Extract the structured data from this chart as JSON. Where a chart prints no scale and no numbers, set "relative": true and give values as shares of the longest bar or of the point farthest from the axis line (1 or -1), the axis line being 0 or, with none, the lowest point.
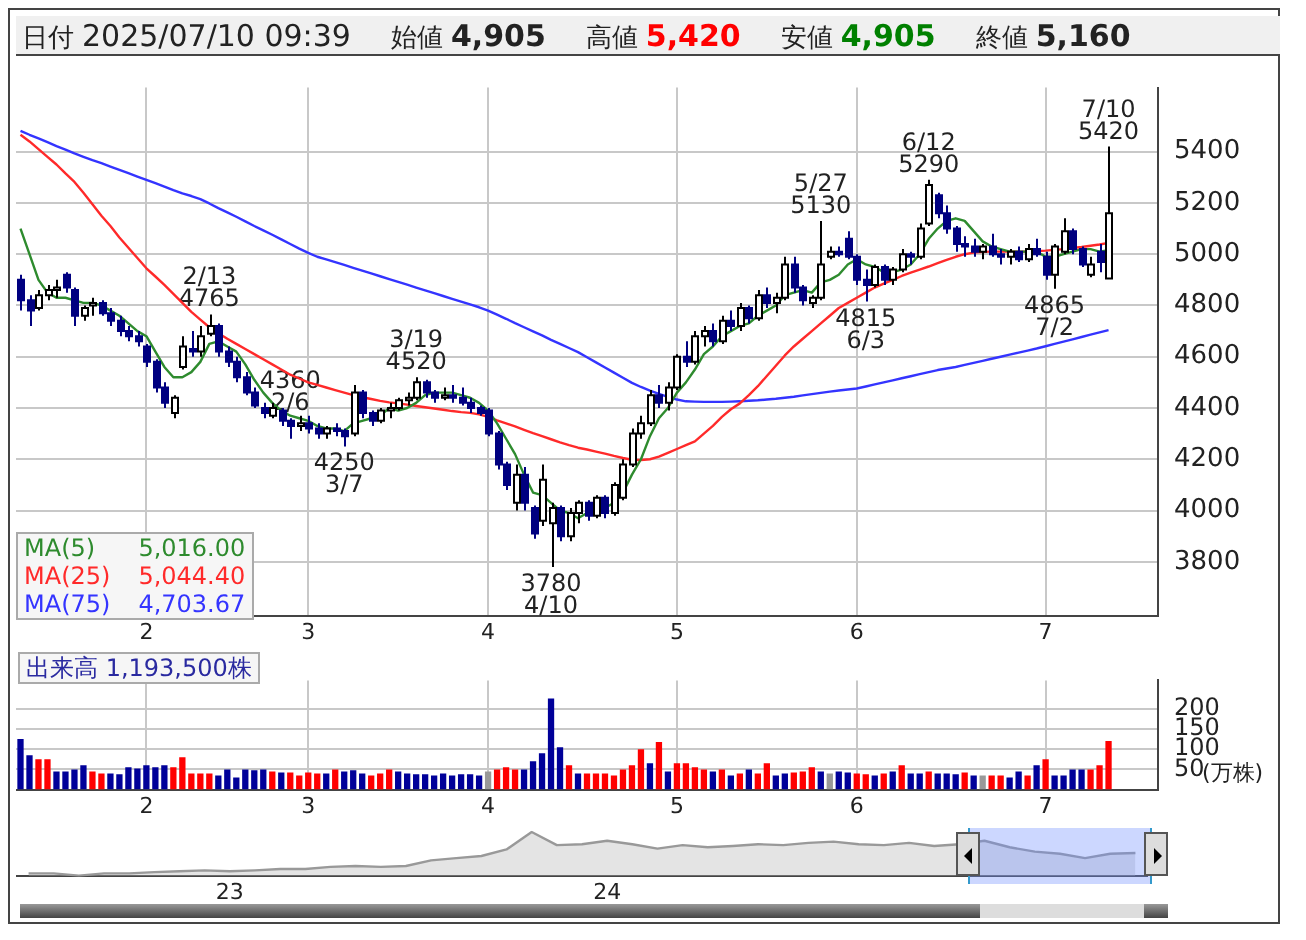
{
  "chart_data": [
    {
      "type": "candlestick",
      "grid": true,
      "legend": "bottom left",
      "marker": "none",
      "ylim": [
        3590,
        5650
      ],
      "yticks": [
        3800,
        4000,
        4200,
        4400,
        4600,
        4800,
        5000,
        5200,
        5400
      ],
      "annotations": [
        "日付 2025/07/10 09:39",
        "始値 4,905",
        "高値 5,420",
        "安値 4,905",
        "終値 5,160",
        "5,016.00",
        "5,044.40",
        "4,703.67",
        {
          "text": "4360\n2/6",
          "y": 4360
        },
        {
          "text": "2/13\n4765",
          "y": 4765
        },
        {
          "text": "4250\n3/7",
          "y": 4250
        },
        {
          "text": "3/19\n4520",
          "y": 4520
        },
        {
          "text": "3780\n4/10",
          "y": 3780
        },
        {
          "text": "5/27\n5130",
          "y": 5130
        },
        {
          "text": "4815\n6/3",
          "y": 4815
        },
        {
          "text": "6/12\n5290",
          "y": 5290
        },
        {
          "text": "4865\n7/2",
          "y": 4865
        },
        {
          "text": "7/10\n5420",
          "y": 5420
        }
      ],
      "categories": [
        null,
        null,
        null,
        null,
        null,
        null,
        null,
        null,
        null,
        null,
        null,
        null,
        null,
        null,
        "2",
        null,
        null,
        null,
        null,
        null,
        null,
        null,
        null,
        null,
        null,
        null,
        null,
        null,
        null,
        null,
        null,
        null,
        "3",
        null,
        null,
        null,
        null,
        null,
        null,
        null,
        null,
        null,
        null,
        null,
        null,
        null,
        null,
        null,
        null,
        null,
        null,
        null,
        "4",
        null,
        null,
        null,
        null,
        null,
        null,
        null,
        null,
        null,
        null,
        null,
        null,
        null,
        null,
        null,
        null,
        null,
        null,
        null,
        null,
        "5",
        null,
        null,
        null,
        null,
        null,
        null,
        null,
        null,
        null,
        null,
        null,
        null,
        null,
        null,
        null,
        null,
        null,
        null,
        null,
        "6",
        null,
        null,
        null,
        null,
        null,
        null,
        null,
        null,
        null,
        null,
        null,
        null,
        null,
        null,
        null,
        null,
        null,
        null,
        null,
        null,
        "7",
        null,
        null,
        null,
        null,
        null,
        null,
        null
      ],
      "ohlc": [
        [
          4900,
          4920,
          4780,
          4820
        ],
        [
          4820,
          4840,
          4720,
          4780
        ],
        [
          4790,
          4860,
          4780,
          4840
        ],
        [
          4840,
          4880,
          4820,
          4860
        ],
        [
          4860,
          4900,
          4830,
          4870
        ],
        [
          4920,
          4930,
          4850,
          4870
        ],
        [
          4860,
          4870,
          4720,
          4760
        ],
        [
          4760,
          4800,
          4740,
          4790
        ],
        [
          4800,
          4830,
          4760,
          4810
        ],
        [
          4810,
          4820,
          4760,
          4770
        ],
        [
          4770,
          4790,
          4720,
          4740
        ],
        [
          4740,
          4760,
          4680,
          4700
        ],
        [
          4700,
          4720,
          4660,
          4680
        ],
        [
          4680,
          4700,
          4640,
          4660
        ],
        [
          4640,
          4650,
          4560,
          4580
        ],
        [
          4580,
          4590,
          4460,
          4480
        ],
        [
          4480,
          4500,
          4400,
          4420
        ],
        [
          4380,
          4450,
          4360,
          4440
        ],
        [
          4560,
          4680,
          4550,
          4640
        ],
        [
          4630,
          4700,
          4600,
          4620
        ],
        [
          4620,
          4720,
          4600,
          4680
        ],
        [
          4690,
          4765,
          4680,
          4720
        ],
        [
          4720,
          4730,
          4600,
          4620
        ],
        [
          4620,
          4640,
          4560,
          4580
        ],
        [
          4580,
          4600,
          4500,
          4520
        ],
        [
          4520,
          4540,
          4450,
          4460
        ],
        [
          4460,
          4480,
          4400,
          4410
        ],
        [
          4400,
          4420,
          4360,
          4380
        ],
        [
          4370,
          4420,
          4360,
          4400
        ],
        [
          4390,
          4400,
          4330,
          4350
        ],
        [
          4350,
          4360,
          4280,
          4330
        ],
        [
          4330,
          4370,
          4310,
          4340
        ],
        [
          4340,
          4370,
          4300,
          4320
        ],
        [
          4320,
          4340,
          4280,
          4300
        ],
        [
          4300,
          4330,
          4280,
          4320
        ],
        [
          4320,
          4340,
          4290,
          4310
        ],
        [
          4310,
          4320,
          4250,
          4290
        ],
        [
          4300,
          4490,
          4290,
          4460
        ],
        [
          4460,
          4470,
          4360,
          4380
        ],
        [
          4380,
          4390,
          4330,
          4350
        ],
        [
          4350,
          4400,
          4340,
          4390
        ],
        [
          4390,
          4420,
          4360,
          4400
        ],
        [
          4400,
          4440,
          4390,
          4430
        ],
        [
          4430,
          4460,
          4410,
          4440
        ],
        [
          4440,
          4520,
          4430,
          4500
        ],
        [
          4500,
          4510,
          4440,
          4460
        ],
        [
          4460,
          4470,
          4420,
          4440
        ],
        [
          4440,
          4480,
          4430,
          4450
        ],
        [
          4450,
          4490,
          4420,
          4440
        ],
        [
          4440,
          4480,
          4410,
          4420
        ],
        [
          4420,
          4440,
          4380,
          4400
        ],
        [
          4400,
          4410,
          4370,
          4380
        ],
        [
          4390,
          4400,
          4290,
          4300
        ],
        [
          4300,
          4310,
          4160,
          4180
        ],
        [
          4180,
          4190,
          4080,
          4100
        ],
        [
          4030,
          4180,
          4000,
          4140
        ],
        [
          4140,
          4170,
          4000,
          4030
        ],
        [
          4010,
          4020,
          3890,
          3910
        ],
        [
          3960,
          4180,
          3940,
          4120
        ],
        [
          3950,
          4030,
          3780,
          4010
        ],
        [
          4010,
          4020,
          3880,
          3900
        ],
        [
          3900,
          4010,
          3880,
          3990
        ],
        [
          3990,
          4040,
          3950,
          4030
        ],
        [
          4030,
          4040,
          3960,
          3980
        ],
        [
          3980,
          4060,
          3970,
          4050
        ],
        [
          4050,
          4060,
          3970,
          3990
        ],
        [
          3990,
          4110,
          3980,
          4100
        ],
        [
          4050,
          4200,
          4040,
          4180
        ],
        [
          4180,
          4320,
          4170,
          4300
        ],
        [
          4300,
          4370,
          4280,
          4340
        ],
        [
          4340,
          4470,
          4330,
          4450
        ],
        [
          4450,
          4490,
          4400,
          4420
        ],
        [
          4420,
          4500,
          4390,
          4480
        ],
        [
          4480,
          4610,
          4470,
          4600
        ],
        [
          4600,
          4660,
          4560,
          4580
        ],
        [
          4580,
          4700,
          4570,
          4680
        ],
        [
          4680,
          4720,
          4640,
          4700
        ],
        [
          4700,
          4730,
          4640,
          4660
        ],
        [
          4660,
          4760,
          4650,
          4740
        ],
        [
          4740,
          4780,
          4700,
          4720
        ],
        [
          4720,
          4810,
          4700,
          4790
        ],
        [
          4790,
          4800,
          4730,
          4750
        ],
        [
          4750,
          4860,
          4740,
          4840
        ],
        [
          4840,
          4870,
          4790,
          4810
        ],
        [
          4810,
          4850,
          4770,
          4830
        ],
        [
          4830,
          4990,
          4820,
          4960
        ],
        [
          4960,
          4990,
          4850,
          4870
        ],
        [
          4870,
          4880,
          4800,
          4820
        ],
        [
          4810,
          4840,
          4790,
          4830
        ],
        [
          4830,
          5130,
          4820,
          4960
        ],
        [
          4990,
          5030,
          4980,
          5010
        ],
        [
          5010,
          5030,
          4990,
          5000
        ],
        [
          5060,
          5090,
          4980,
          4990
        ],
        [
          4990,
          5000,
          4880,
          4900
        ],
        [
          4900,
          4940,
          4815,
          4880
        ],
        [
          4880,
          4960,
          4870,
          4950
        ],
        [
          4950,
          4960,
          4880,
          4900
        ],
        [
          4900,
          4950,
          4880,
          4940
        ],
        [
          4940,
          5020,
          4930,
          5000
        ],
        [
          5000,
          5010,
          4960,
          4990
        ],
        [
          4990,
          5120,
          4980,
          5100
        ],
        [
          5120,
          5290,
          5110,
          5270
        ],
        [
          5230,
          5240,
          5140,
          5160
        ],
        [
          5160,
          5190,
          5080,
          5100
        ],
        [
          5100,
          5110,
          5010,
          5040
        ],
        [
          5040,
          5070,
          4990,
          5030
        ],
        [
          5030,
          5060,
          4990,
          5010
        ],
        [
          5010,
          5040,
          4980,
          5030
        ],
        [
          5030,
          5080,
          4990,
          5000
        ],
        [
          5000,
          5020,
          4960,
          4990
        ],
        [
          4990,
          5020,
          4960,
          5010
        ],
        [
          5010,
          5030,
          4970,
          4980
        ],
        [
          4980,
          5040,
          4970,
          5020
        ],
        [
          5020,
          5060,
          4990,
          5000
        ],
        [
          4990,
          5010,
          4900,
          4920
        ],
        [
          4920,
          5040,
          4865,
          5030
        ],
        [
          5010,
          5140,
          5000,
          5090
        ],
        [
          5090,
          5100,
          5000,
          5020
        ],
        [
          5020,
          5030,
          4950,
          4960
        ],
        [
          4920,
          4990,
          4910,
          4960
        ],
        [
          5010,
          5040,
          4930,
          4970
        ],
        [
          4905,
          5420,
          4905,
          5160
        ]
      ],
      "series": [
        {
          "type": "line",
          "name": "MA(5)",
          "color": "#2e8b2e",
          "values": [
            5100,
            5000,
            4900,
            4850,
            4830,
            4830,
            4820,
            4810,
            4810,
            4800,
            4780,
            4760,
            4730,
            4700,
            4680,
            4620,
            4560,
            4520,
            4520,
            4540,
            4580,
            4650,
            4660,
            4640,
            4620,
            4570,
            4510,
            4460,
            4420,
            4390,
            4370,
            4360,
            4350,
            4330,
            4320,
            4320,
            4310,
            4340,
            4350,
            4360,
            4370,
            4400,
            4390,
            4400,
            4420,
            4450,
            4460,
            4460,
            4460,
            4450,
            4440,
            4420,
            4390,
            4340,
            4280,
            4220,
            4140,
            4070,
            4060,
            4030,
            4000,
            3990,
            3970,
            3990,
            4000,
            4010,
            4030,
            4070,
            4140,
            4200,
            4290,
            4360,
            4400,
            4460,
            4500,
            4550,
            4610,
            4640,
            4680,
            4700,
            4720,
            4730,
            4760,
            4780,
            4800,
            4840,
            4850,
            4860,
            4850,
            4890,
            4900,
            4920,
            4960,
            4980,
            4960,
            4950,
            4930,
            4930,
            4940,
            4960,
            5000,
            5060,
            5100,
            5130,
            5140,
            5130,
            5090,
            5050,
            5030,
            5020,
            5010,
            5010,
            5010,
            5010,
            4990,
            4990,
            5000,
            5010,
            5020,
            5020,
            5010,
            5016
          ]
        },
        {
          "type": "line",
          "name": "MA(25)",
          "color": "#ff2a2a",
          "values": [
            5466,
            5440,
            5410,
            5380,
            5350,
            5315,
            5282,
            5240,
            5195,
            5150,
            5110,
            5065,
            5025,
            4985,
            4945,
            4913,
            4880,
            4845,
            4810,
            4775,
            4745,
            4715,
            4692,
            4670,
            4650,
            4630,
            4610,
            4590,
            4570,
            4550,
            4530,
            4515,
            4500,
            4490,
            4480,
            4470,
            4460,
            4450,
            4442,
            4435,
            4428,
            4422,
            4418,
            4413,
            4408,
            4403,
            4398,
            4393,
            4388,
            4384,
            4381,
            4375,
            4365,
            4352,
            4340,
            4328,
            4315,
            4302,
            4290,
            4278,
            4266,
            4255,
            4245,
            4238,
            4230,
            4222,
            4213,
            4205,
            4198,
            4197,
            4200,
            4210,
            4225,
            4240,
            4255,
            4270,
            4300,
            4330,
            4365,
            4395,
            4418,
            4450,
            4485,
            4525,
            4565,
            4605,
            4640,
            4670,
            4700,
            4730,
            4760,
            4790,
            4810,
            4830,
            4850,
            4870,
            4885,
            4900,
            4915,
            4928,
            4940,
            4952,
            4965,
            4978,
            4990,
            5000,
            5006,
            5009,
            5010,
            5010,
            5010,
            5010,
            5010,
            5012,
            5014,
            5017,
            5020,
            5024,
            5028,
            5033,
            5038,
            5044
          ]
        },
        {
          "type": "line",
          "name": "MA(75)",
          "color": "#3434ff",
          "values": [
            5481,
            5466,
            5452,
            5437,
            5422,
            5408,
            5393,
            5380,
            5367,
            5355,
            5342,
            5329,
            5316,
            5303,
            5290,
            5277,
            5264,
            5250,
            5237,
            5227,
            5215,
            5198,
            5180,
            5163,
            5146,
            5128,
            5110,
            5093,
            5076,
            5058,
            5040,
            5022,
            5005,
            4990,
            4980,
            4969,
            4958,
            4947,
            4936,
            4925,
            4914,
            4903,
            4892,
            4881,
            4870,
            4859,
            4848,
            4837,
            4826,
            4815,
            4804,
            4793,
            4780,
            4764,
            4748,
            4731,
            4715,
            4699,
            4683,
            4666,
            4650,
            4634,
            4618,
            4598,
            4578,
            4558,
            4538,
            4518,
            4498,
            4482,
            4468,
            4455,
            4443,
            4433,
            4426,
            4425,
            4424,
            4424,
            4424,
            4425,
            4426,
            4428,
            4430,
            4433,
            4436,
            4440,
            4444,
            4449,
            4454,
            4459,
            4464,
            4468,
            4472,
            4476,
            4484,
            4492,
            4500,
            4508,
            4516,
            4524,
            4532,
            4540,
            4548,
            4554,
            4560,
            4568,
            4576,
            4584,
            4592,
            4600,
            4608,
            4616,
            4624,
            4632,
            4641,
            4650,
            4659,
            4668,
            4677,
            4686,
            4695,
            4704
          ]
        }
      ]
    },
    {
      "type": "bar",
      "title": "出来高  1,193,500株",
      "ylabel": "(万株)",
      "grid": true,
      "ylim": [
        0,
        270
      ],
      "yticks": [
        50,
        100,
        150,
        200
      ],
      "categories": [
        null,
        null,
        null,
        null,
        null,
        null,
        null,
        null,
        null,
        null,
        null,
        null,
        null,
        null,
        "2",
        null,
        null,
        null,
        null,
        null,
        null,
        null,
        null,
        null,
        null,
        null,
        null,
        null,
        null,
        null,
        null,
        null,
        "3",
        null,
        null,
        null,
        null,
        null,
        null,
        null,
        null,
        null,
        null,
        null,
        null,
        null,
        null,
        null,
        null,
        null,
        null,
        null,
        "4",
        null,
        null,
        null,
        null,
        null,
        null,
        null,
        null,
        null,
        null,
        null,
        null,
        null,
        null,
        null,
        null,
        null,
        null,
        null,
        null,
        "5",
        null,
        null,
        null,
        null,
        null,
        null,
        null,
        null,
        null,
        null,
        null,
        null,
        null,
        null,
        null,
        null,
        null,
        null,
        null,
        "6",
        null,
        null,
        null,
        null,
        null,
        null,
        null,
        null,
        null,
        null,
        null,
        null,
        null,
        null,
        null,
        null,
        null,
        null,
        null,
        null,
        "7",
        null,
        null,
        null,
        null,
        null,
        null,
        null
      ],
      "values": [
        125,
        85,
        75,
        75,
        45,
        45,
        50,
        60,
        45,
        40,
        40,
        38,
        55,
        52,
        60,
        55,
        60,
        55,
        80,
        40,
        40,
        40,
        35,
        50,
        30,
        50,
        48,
        50,
        45,
        42,
        42,
        35,
        42,
        40,
        40,
        50,
        45,
        48,
        40,
        35,
        40,
        50,
        45,
        40,
        38,
        38,
        35,
        40,
        35,
        38,
        38,
        35,
        45,
        50,
        55,
        50,
        50,
        70,
        90,
        225,
        105,
        60,
        40,
        40,
        40,
        40,
        35,
        50,
        60,
        100,
        65,
        118,
        45,
        65,
        65,
        55,
        50,
        45,
        50,
        35,
        40,
        50,
        40,
        65,
        35,
        40,
        42,
        45,
        55,
        45,
        40,
        45,
        42,
        40,
        38,
        35,
        40,
        45,
        60,
        40,
        40,
        45,
        40,
        40,
        38,
        42,
        35,
        35,
        35,
        35,
        30,
        45,
        35,
        60,
        75,
        35,
        35,
        50,
        50,
        50,
        60,
        120
      ],
      "colors": [
        "#000099",
        "#000099",
        "#ff0000",
        "#ff0000",
        "#000099",
        "#000099",
        "#000099",
        "#000099",
        "#ff0000",
        "#ff0000",
        "#000099",
        "#000099",
        "#000099",
        "#000099",
        "#000099",
        "#000099",
        "#000099",
        "#ff0000",
        "#ff0000",
        "#ff0000",
        "#ff0000",
        "#ff0000",
        "#000099",
        "#000099",
        "#000099",
        "#000099",
        "#000099",
        "#000099",
        "#ff0000",
        "#000099",
        "#ff0000",
        "#ff0000",
        "#ff0000",
        "#ff0000",
        "#000099",
        "#ff0000",
        "#000099",
        "#000099",
        "#000099",
        "#ff0000",
        "#ff0000",
        "#ff0000",
        "#000099",
        "#000099",
        "#000099",
        "#000099",
        "#000099",
        "#000099",
        "#000099",
        "#000099",
        "#000099",
        "#000099",
        "#999999",
        "#ff0000",
        "#ff0000",
        "#ff0000",
        "#000099",
        "#000099",
        "#000099",
        "#000099",
        "#000099",
        "#ff0000",
        "#000099",
        "#ff0000",
        "#ff0000",
        "#ff0000",
        "#ff0000",
        "#ff0000",
        "#ff0000",
        "#ff0000",
        "#000099",
        "#ff0000",
        "#000099",
        "#ff0000",
        "#ff0000",
        "#ff0000",
        "#ff0000",
        "#000099",
        "#ff0000",
        "#000099",
        "#ff0000",
        "#000099",
        "#ff0000",
        "#ff0000",
        "#000099",
        "#000099",
        "#ff0000",
        "#ff0000",
        "#ff0000",
        "#000099",
        "#999999",
        "#000099",
        "#000099",
        "#ff0000",
        "#ff0000",
        "#000099",
        "#ff0000",
        "#000099",
        "#ff0000",
        "#000099",
        "#000099",
        "#ff0000",
        "#000099",
        "#000099",
        "#000099",
        "#ff0000",
        "#000099",
        "#999999",
        "#ff0000",
        "#ff0000",
        "#000099",
        "#000099",
        "#ff0000",
        "#000099",
        "#ff0000",
        "#000099",
        "#000099",
        "#000099",
        "#000099",
        "#ff0000",
        "#ff0000",
        "#ff0000"
      ]
    },
    {
      "type": "area",
      "relative": true,
      "tick_labels": "x",
      "categories": [
        null,
        null,
        null,
        null,
        null,
        null,
        null,
        null,
        "23",
        null,
        null,
        null,
        null,
        null,
        null,
        null,
        null,
        null,
        null,
        null,
        null,
        null,
        null,
        "24",
        null,
        null,
        null,
        null,
        null,
        null,
        null,
        null,
        null,
        null,
        null,
        null,
        null,
        null,
        null,
        null,
        null,
        null,
        null,
        null,
        null
      ],
      "series": [
        {
          "color": "#999999",
          "values": [
            0.05,
            0.05,
            0,
            0.05,
            0.05,
            0.08,
            0.1,
            0.12,
            0.1,
            0.12,
            0.15,
            0.15,
            0.2,
            0.22,
            0.2,
            0.22,
            0.35,
            0.4,
            0.45,
            0.6,
            1,
            0.7,
            0.72,
            0.8,
            0.72,
            0.62,
            0.7,
            0.65,
            0.68,
            0.72,
            0.7,
            0.75,
            0.78,
            0.72,
            0.7,
            0.75,
            0.68,
            0.72,
            0.8,
            0.65,
            0.55,
            0.5,
            0.4,
            0.5,
            0.52
          ]
        }
      ]
    }
  ]
}
